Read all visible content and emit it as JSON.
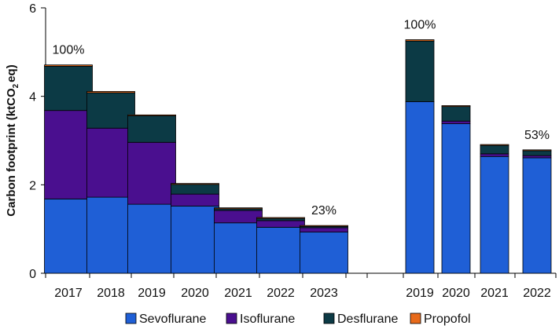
{
  "chart_data": {
    "type": "bar",
    "stacked": true,
    "ylabel_main": "Carbon footprint (ktCO",
    "ylabel_sub": "2",
    "ylabel_end": "eq)",
    "ylim": [
      0,
      6
    ],
    "yticks": [
      "0",
      "2",
      "4",
      "6"
    ],
    "ytick_values": [
      0,
      2,
      4,
      6
    ],
    "groups": [
      {
        "categories": [
          "2017",
          "2018",
          "2019",
          "2020",
          "2021",
          "2022",
          "2023"
        ],
        "series": [
          {
            "name": "Sevoflurane",
            "values": [
              1.68,
              1.72,
              1.56,
              1.52,
              1.14,
              1.04,
              0.93
            ]
          },
          {
            "name": "Isoflurane",
            "values": [
              2.0,
              1.56,
              1.4,
              0.27,
              0.28,
              0.15,
              0.1
            ]
          },
          {
            "name": "Desflurane",
            "values": [
              1.0,
              0.8,
              0.6,
              0.22,
              0.04,
              0.05,
              0.03
            ]
          },
          {
            "name": "Propofol",
            "values": [
              0.03,
              0.03,
              0.02,
              0.02,
              0.02,
              0.02,
              0.02
            ]
          }
        ],
        "annotations": [
          {
            "category": "2017",
            "text": "100%"
          },
          {
            "category": "2023",
            "text": "23%"
          }
        ]
      },
      {
        "categories": [
          "2019",
          "2020",
          "2021",
          "2022"
        ],
        "series": [
          {
            "name": "Sevoflurane",
            "values": [
              3.88,
              3.38,
              2.64,
              2.61
            ]
          },
          {
            "name": "Isoflurane",
            "values": [
              0.0,
              0.06,
              0.06,
              0.05
            ]
          },
          {
            "name": "Desflurane",
            "values": [
              1.37,
              0.33,
              0.19,
              0.11
            ]
          },
          {
            "name": "Propofol",
            "values": [
              0.03,
              0.02,
              0.02,
              0.02
            ]
          }
        ],
        "annotations": [
          {
            "category": "2019",
            "text": "100%"
          },
          {
            "category": "2022",
            "text": "53%"
          }
        ]
      }
    ],
    "legend": [
      "Sevoflurane",
      "Isoflurane",
      "Desflurane",
      "Propofol"
    ],
    "legend_position": "bottom",
    "colors": {
      "Sevoflurane": "#1f5fd6",
      "Isoflurane": "#4a0f8f",
      "Desflurane": "#0c3a45",
      "Propofol": "#e86a1a"
    }
  }
}
